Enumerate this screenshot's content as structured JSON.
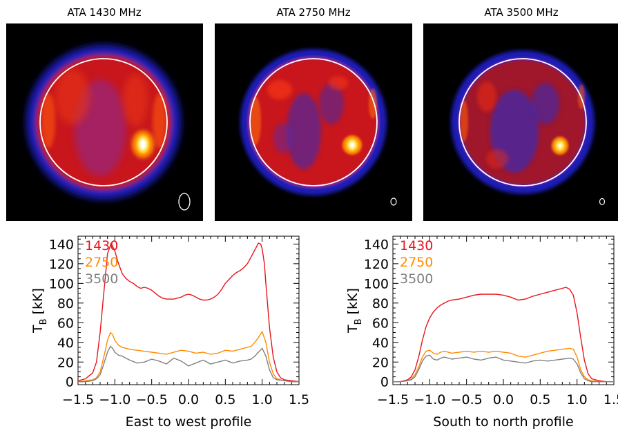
{
  "chart_data": [
    {
      "type": "heatmap",
      "title": "ATA 1430 MHz",
      "colormap": [
        "#000000",
        "#1a1ab4",
        "#7a2aa0",
        "#c8101a",
        "#e83212",
        "#ff7a00",
        "#ffe040",
        "#ffffff"
      ],
      "limb_circle": true,
      "features": [
        {
          "name": "bright region",
          "disk_x": 0.55,
          "disk_y": -0.32,
          "level": 1.0
        }
      ]
    },
    {
      "type": "heatmap",
      "title": "ATA 2750 MHz",
      "colormap": [
        "#000000",
        "#1a1ab4",
        "#7a2aa0",
        "#c8101a",
        "#e83212",
        "#ff7a00",
        "#ffe040",
        "#ffffff"
      ],
      "limb_circle": true,
      "features": [
        {
          "name": "bright region",
          "disk_x": 0.55,
          "disk_y": -0.32,
          "level": 1.0
        }
      ]
    },
    {
      "type": "heatmap",
      "title": "ATA 3500 MHz",
      "colormap": [
        "#000000",
        "#1a1ab4",
        "#7a2aa0",
        "#c8101a",
        "#e83212",
        "#ff7a00",
        "#ffe040",
        "#ffffff"
      ],
      "limb_circle": true,
      "features": [
        {
          "name": "bright region",
          "disk_x": 0.55,
          "disk_y": -0.32,
          "level": 1.0
        }
      ]
    },
    {
      "type": "line",
      "xlabel": "East to west profile",
      "ylabel": "T_B [kK]",
      "ylabel_main": "T",
      "ylabel_sub": "B",
      "ylabel_units": "[kK]",
      "xlim": [
        -1.5,
        1.5
      ],
      "ylim": [
        -3,
        148
      ],
      "xticks": [
        -1.5,
        -1.0,
        -0.5,
        0.0,
        0.5,
        1.0,
        1.5
      ],
      "xtick_labels": [
        "−1.5",
        "−1.0",
        "−0.5",
        "0.0",
        "0.5",
        "1.0",
        "1.5"
      ],
      "yticks": [
        0,
        20,
        40,
        60,
        80,
        100,
        120,
        140
      ],
      "ytick_labels": [
        "0",
        "20",
        "40",
        "60",
        "80",
        "100",
        "120",
        "140"
      ],
      "legend_position": "top-left",
      "series": [
        {
          "name": "1430",
          "color": "#e8141c",
          "x": [
            -1.5,
            -1.4,
            -1.3,
            -1.25,
            -1.2,
            -1.15,
            -1.1,
            -1.05,
            -1.0,
            -0.95,
            -0.9,
            -0.85,
            -0.8,
            -0.75,
            -0.7,
            -0.65,
            -0.6,
            -0.55,
            -0.5,
            -0.45,
            -0.4,
            -0.35,
            -0.3,
            -0.25,
            -0.2,
            -0.15,
            -0.1,
            -0.05,
            0.0,
            0.05,
            0.1,
            0.15,
            0.2,
            0.25,
            0.3,
            0.35,
            0.4,
            0.45,
            0.5,
            0.55,
            0.6,
            0.65,
            0.7,
            0.75,
            0.8,
            0.85,
            0.9,
            0.95,
            0.98,
            1.0,
            1.03,
            1.05,
            1.1,
            1.15,
            1.2,
            1.25,
            1.3,
            1.4,
            1.5
          ],
          "y": [
            1,
            3,
            9,
            20,
            50,
            90,
            130,
            141,
            133,
            120,
            110,
            105,
            102,
            100,
            97,
            95,
            96,
            95,
            93,
            90,
            87,
            85,
            84,
            84,
            84,
            85,
            86,
            88,
            89,
            88,
            86,
            84,
            83,
            83,
            84,
            86,
            89,
            94,
            100,
            104,
            108,
            111,
            113,
            116,
            120,
            127,
            134,
            141,
            140,
            135,
            120,
            100,
            55,
            25,
            10,
            4,
            2,
            1,
            0
          ]
        },
        {
          "name": "2750",
          "color": "#ff8c00",
          "x": [
            -1.5,
            -1.4,
            -1.3,
            -1.25,
            -1.2,
            -1.15,
            -1.1,
            -1.06,
            -1.03,
            -1.0,
            -0.95,
            -0.9,
            -0.85,
            -0.8,
            -0.7,
            -0.6,
            -0.5,
            -0.4,
            -0.3,
            -0.2,
            -0.1,
            0.0,
            0.1,
            0.2,
            0.3,
            0.4,
            0.5,
            0.6,
            0.7,
            0.8,
            0.85,
            0.9,
            0.95,
            1.0,
            1.05,
            1.1,
            1.15,
            1.2,
            1.3,
            1.4,
            1.5
          ],
          "y": [
            0,
            1,
            2,
            4,
            10,
            25,
            42,
            50,
            48,
            42,
            37,
            35,
            34,
            33,
            32,
            31,
            30,
            29,
            28,
            30,
            32,
            31,
            29,
            30,
            28,
            29,
            32,
            31,
            33,
            35,
            36,
            40,
            45,
            51,
            40,
            20,
            8,
            3,
            1,
            0,
            0
          ]
        },
        {
          "name": "3500",
          "color": "#808080",
          "x": [
            -1.5,
            -1.4,
            -1.3,
            -1.25,
            -1.2,
            -1.15,
            -1.1,
            -1.06,
            -1.03,
            -1.0,
            -0.95,
            -0.9,
            -0.85,
            -0.8,
            -0.7,
            -0.6,
            -0.5,
            -0.4,
            -0.3,
            -0.2,
            -0.1,
            0.0,
            0.1,
            0.2,
            0.3,
            0.4,
            0.5,
            0.6,
            0.7,
            0.8,
            0.85,
            0.9,
            0.95,
            1.0,
            1.05,
            1.1,
            1.15,
            1.2,
            1.3,
            1.4,
            1.5
          ],
          "y": [
            0,
            0,
            1,
            3,
            7,
            18,
            30,
            36,
            34,
            30,
            27,
            26,
            24,
            22,
            19,
            20,
            23,
            21,
            18,
            24,
            21,
            16,
            19,
            22,
            18,
            20,
            22,
            19,
            21,
            22,
            23,
            26,
            30,
            34,
            26,
            12,
            4,
            2,
            1,
            0,
            0
          ]
        }
      ]
    },
    {
      "type": "line",
      "xlabel": "South to north profile",
      "ylabel": "T_B [kK]",
      "ylabel_main": "T",
      "ylabel_sub": "B",
      "ylabel_units": "[kK]",
      "xlim": [
        -1.5,
        1.5
      ],
      "ylim": [
        -3,
        148
      ],
      "xticks": [
        -1.5,
        -1.0,
        -0.5,
        0.0,
        0.5,
        1.0,
        1.5
      ],
      "xtick_labels": [
        "−1.5",
        "−1.0",
        "−0.5",
        "0.0",
        "0.5",
        "1.0",
        "1.5"
      ],
      "yticks": [
        0,
        20,
        40,
        60,
        80,
        100,
        120,
        140
      ],
      "ytick_labels": [
        "0",
        "20",
        "40",
        "60",
        "80",
        "100",
        "120",
        "140"
      ],
      "legend_position": "top-left",
      "series": [
        {
          "name": "1430",
          "color": "#e8141c",
          "x": [
            -1.5,
            -1.4,
            -1.3,
            -1.25,
            -1.2,
            -1.15,
            -1.1,
            -1.05,
            -1.0,
            -0.95,
            -0.9,
            -0.85,
            -0.8,
            -0.75,
            -0.7,
            -0.6,
            -0.5,
            -0.4,
            -0.3,
            -0.2,
            -0.1,
            0.0,
            0.1,
            0.2,
            0.3,
            0.4,
            0.5,
            0.6,
            0.7,
            0.8,
            0.85,
            0.9,
            0.95,
            1.0,
            1.05,
            1.1,
            1.15,
            1.2,
            1.3,
            1.4,
            1.5
          ],
          "y": [
            0,
            0,
            2,
            5,
            12,
            25,
            42,
            56,
            65,
            71,
            75,
            78,
            80,
            82,
            83,
            84,
            86,
            88,
            89,
            89,
            89,
            88,
            86,
            83,
            84,
            87,
            89,
            91,
            93,
            95,
            96,
            94,
            88,
            70,
            45,
            22,
            8,
            3,
            1,
            0,
            0
          ]
        },
        {
          "name": "2750",
          "color": "#ff8c00",
          "x": [
            -1.5,
            -1.4,
            -1.3,
            -1.25,
            -1.2,
            -1.15,
            -1.1,
            -1.05,
            -1.0,
            -0.95,
            -0.9,
            -0.85,
            -0.8,
            -0.7,
            -0.6,
            -0.5,
            -0.4,
            -0.3,
            -0.2,
            -0.1,
            0.0,
            0.1,
            0.2,
            0.3,
            0.4,
            0.5,
            0.6,
            0.7,
            0.8,
            0.9,
            0.95,
            1.0,
            1.05,
            1.1,
            1.15,
            1.2,
            1.3,
            1.4,
            1.5
          ],
          "y": [
            0,
            0,
            1,
            3,
            7,
            15,
            25,
            31,
            32,
            29,
            28,
            30,
            31,
            29,
            30,
            31,
            30,
            31,
            30,
            31,
            30,
            29,
            26,
            25,
            27,
            29,
            31,
            32,
            33,
            34,
            33,
            25,
            12,
            5,
            2,
            1,
            0,
            0,
            0
          ]
        },
        {
          "name": "3500",
          "color": "#808080",
          "x": [
            -1.5,
            -1.4,
            -1.3,
            -1.25,
            -1.2,
            -1.15,
            -1.1,
            -1.05,
            -1.0,
            -0.95,
            -0.9,
            -0.85,
            -0.8,
            -0.7,
            -0.6,
            -0.5,
            -0.4,
            -0.3,
            -0.2,
            -0.1,
            0.0,
            0.1,
            0.2,
            0.3,
            0.4,
            0.5,
            0.6,
            0.7,
            0.8,
            0.9,
            0.95,
            1.0,
            1.05,
            1.1,
            1.15,
            1.2,
            1.3,
            1.4,
            1.5
          ],
          "y": [
            0,
            0,
            1,
            2,
            5,
            12,
            21,
            26,
            27,
            23,
            22,
            24,
            25,
            23,
            24,
            25,
            23,
            22,
            24,
            25,
            22,
            21,
            20,
            19,
            21,
            22,
            21,
            22,
            23,
            24,
            23,
            18,
            9,
            3,
            1,
            0,
            0,
            0,
            0
          ]
        }
      ]
    }
  ]
}
